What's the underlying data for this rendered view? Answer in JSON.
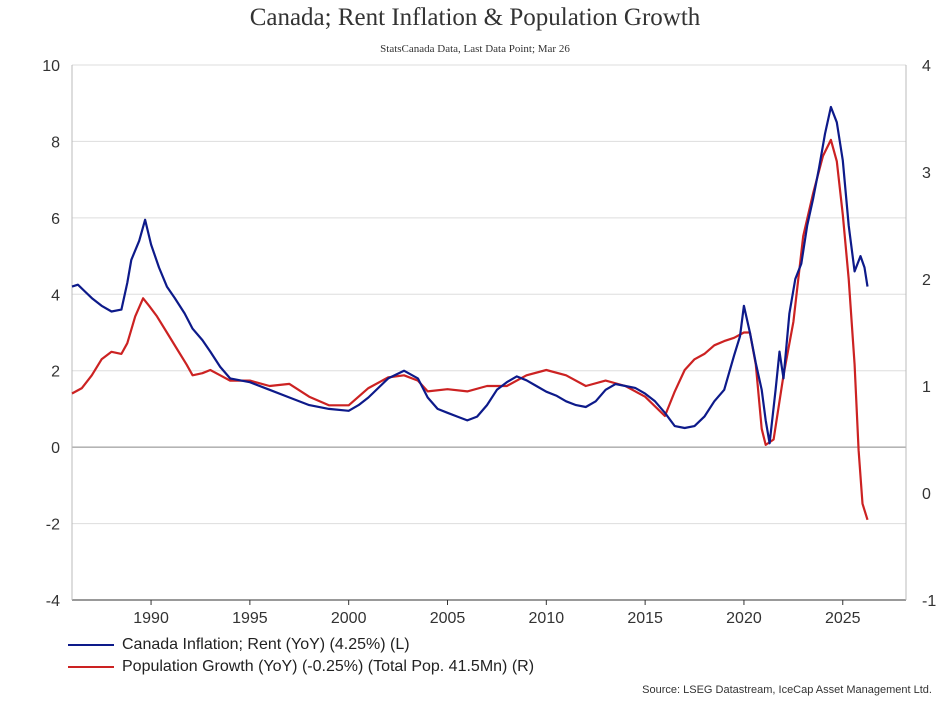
{
  "chart_data": {
    "type": "line",
    "title": "Canada; Rent Inflation & Population Growth",
    "subtitle": "StatsCanada Data, Last Data Point; Mar 26",
    "source": "Source: LSEG Datastream, IceCap Asset Management Ltd.",
    "xlim": [
      1986.0,
      2028.2
    ],
    "x_ticks": [
      1990,
      1995,
      2000,
      2005,
      2010,
      2015,
      2020,
      2025
    ],
    "y_left": {
      "range": [
        -4,
        10
      ],
      "ticks": [
        -4,
        -2,
        0,
        2,
        4,
        6,
        8,
        10
      ]
    },
    "y_right": {
      "range": [
        -1,
        4
      ],
      "ticks": [
        -1,
        0,
        1,
        2,
        3,
        4
      ]
    },
    "grid": "horizontal",
    "legend_position": "bottom-left",
    "colors": {
      "rent": "#0d1a8a",
      "population": "#cc2222",
      "grid": "#dddddd",
      "zero_line": "#888888"
    },
    "series": [
      {
        "name": "Canada Inflation; Rent (YoY) (4.25%) (L)",
        "axis": "left",
        "points": [
          [
            1986.0,
            4.2
          ],
          [
            1986.3,
            4.25
          ],
          [
            1986.6,
            4.1
          ],
          [
            1987.0,
            3.9
          ],
          [
            1987.5,
            3.7
          ],
          [
            1988.0,
            3.55
          ],
          [
            1988.5,
            3.6
          ],
          [
            1988.8,
            4.3
          ],
          [
            1989.0,
            4.9
          ],
          [
            1989.4,
            5.4
          ],
          [
            1989.7,
            5.95
          ],
          [
            1990.0,
            5.3
          ],
          [
            1990.4,
            4.7
          ],
          [
            1990.8,
            4.2
          ],
          [
            1991.2,
            3.9
          ],
          [
            1991.7,
            3.5
          ],
          [
            1992.1,
            3.1
          ],
          [
            1992.6,
            2.8
          ],
          [
            1993.0,
            2.5
          ],
          [
            1993.5,
            2.1
          ],
          [
            1994.0,
            1.8
          ],
          [
            1995.0,
            1.7
          ],
          [
            1996.0,
            1.5
          ],
          [
            1997.0,
            1.3
          ],
          [
            1998.0,
            1.1
          ],
          [
            1999.0,
            1.0
          ],
          [
            2000.0,
            0.95
          ],
          [
            2000.5,
            1.1
          ],
          [
            2001.0,
            1.3
          ],
          [
            2002.0,
            1.8
          ],
          [
            2002.8,
            2.0
          ],
          [
            2003.5,
            1.8
          ],
          [
            2004.0,
            1.3
          ],
          [
            2004.5,
            1.0
          ],
          [
            2005.0,
            0.9
          ],
          [
            2005.5,
            0.8
          ],
          [
            2006.0,
            0.7
          ],
          [
            2006.5,
            0.8
          ],
          [
            2007.0,
            1.1
          ],
          [
            2007.5,
            1.5
          ],
          [
            2008.0,
            1.7
          ],
          [
            2008.5,
            1.85
          ],
          [
            2009.0,
            1.75
          ],
          [
            2009.5,
            1.6
          ],
          [
            2010.0,
            1.45
          ],
          [
            2010.5,
            1.35
          ],
          [
            2011.0,
            1.2
          ],
          [
            2011.5,
            1.1
          ],
          [
            2012.0,
            1.05
          ],
          [
            2012.5,
            1.2
          ],
          [
            2013.0,
            1.5
          ],
          [
            2013.5,
            1.65
          ],
          [
            2014.0,
            1.6
          ],
          [
            2014.5,
            1.55
          ],
          [
            2015.0,
            1.4
          ],
          [
            2015.5,
            1.2
          ],
          [
            2016.0,
            0.9
          ],
          [
            2016.5,
            0.55
          ],
          [
            2017.0,
            0.5
          ],
          [
            2017.5,
            0.55
          ],
          [
            2018.0,
            0.8
          ],
          [
            2018.5,
            1.2
          ],
          [
            2019.0,
            1.5
          ],
          [
            2019.5,
            2.4
          ],
          [
            2019.8,
            2.9
          ],
          [
            2020.0,
            3.7
          ],
          [
            2020.3,
            3.0
          ],
          [
            2020.6,
            2.2
          ],
          [
            2020.9,
            1.5
          ],
          [
            2021.1,
            0.7
          ],
          [
            2021.3,
            0.1
          ],
          [
            2021.6,
            1.5
          ],
          [
            2021.8,
            2.5
          ],
          [
            2022.0,
            1.8
          ],
          [
            2022.3,
            3.5
          ],
          [
            2022.6,
            4.4
          ],
          [
            2022.9,
            4.8
          ],
          [
            2023.2,
            5.8
          ],
          [
            2023.5,
            6.5
          ],
          [
            2023.8,
            7.3
          ],
          [
            2024.1,
            8.2
          ],
          [
            2024.4,
            8.9
          ],
          [
            2024.7,
            8.5
          ],
          [
            2025.0,
            7.5
          ],
          [
            2025.3,
            5.8
          ],
          [
            2025.6,
            4.6
          ],
          [
            2025.9,
            5.0
          ],
          [
            2026.1,
            4.7
          ],
          [
            2026.25,
            4.2
          ]
        ]
      },
      {
        "name": "Population Growth (YoY) (-0.25%) (Total Pop. 41.5Mn) (R)",
        "axis": "right",
        "points": [
          [
            1986.0,
            0.93
          ],
          [
            1986.5,
            0.98
          ],
          [
            1987.0,
            1.1
          ],
          [
            1987.5,
            1.25
          ],
          [
            1988.0,
            1.32
          ],
          [
            1988.5,
            1.3
          ],
          [
            1988.8,
            1.4
          ],
          [
            1989.2,
            1.65
          ],
          [
            1989.6,
            1.82
          ],
          [
            1989.9,
            1.75
          ],
          [
            1990.3,
            1.65
          ],
          [
            1990.8,
            1.5
          ],
          [
            1991.3,
            1.35
          ],
          [
            1991.8,
            1.2
          ],
          [
            1992.1,
            1.1
          ],
          [
            1992.6,
            1.12
          ],
          [
            1993.0,
            1.15
          ],
          [
            1993.5,
            1.1
          ],
          [
            1994.0,
            1.05
          ],
          [
            1995.0,
            1.05
          ],
          [
            1996.0,
            1.0
          ],
          [
            1997.0,
            1.02
          ],
          [
            1998.0,
            0.9
          ],
          [
            1999.0,
            0.82
          ],
          [
            2000.0,
            0.82
          ],
          [
            2001.0,
            0.98
          ],
          [
            2002.0,
            1.08
          ],
          [
            2002.8,
            1.1
          ],
          [
            2003.5,
            1.05
          ],
          [
            2004.0,
            0.95
          ],
          [
            2005.0,
            0.97
          ],
          [
            2006.0,
            0.95
          ],
          [
            2007.0,
            1.0
          ],
          [
            2008.0,
            1.0
          ],
          [
            2009.0,
            1.1
          ],
          [
            2010.0,
            1.15
          ],
          [
            2011.0,
            1.1
          ],
          [
            2012.0,
            1.0
          ],
          [
            2013.0,
            1.05
          ],
          [
            2014.0,
            1.0
          ],
          [
            2015.0,
            0.9
          ],
          [
            2016.0,
            0.72
          ],
          [
            2016.5,
            0.95
          ],
          [
            2017.0,
            1.15
          ],
          [
            2017.5,
            1.25
          ],
          [
            2018.0,
            1.3
          ],
          [
            2018.5,
            1.38
          ],
          [
            2019.0,
            1.42
          ],
          [
            2019.5,
            1.45
          ],
          [
            2020.0,
            1.5
          ],
          [
            2020.3,
            1.5
          ],
          [
            2020.6,
            1.2
          ],
          [
            2020.9,
            0.6
          ],
          [
            2021.1,
            0.45
          ],
          [
            2021.5,
            0.5
          ],
          [
            2022.0,
            1.1
          ],
          [
            2022.5,
            1.6
          ],
          [
            2023.0,
            2.4
          ],
          [
            2023.5,
            2.8
          ],
          [
            2024.0,
            3.15
          ],
          [
            2024.4,
            3.3
          ],
          [
            2024.7,
            3.1
          ],
          [
            2025.0,
            2.6
          ],
          [
            2025.3,
            2.0
          ],
          [
            2025.6,
            1.2
          ],
          [
            2025.8,
            0.4
          ],
          [
            2026.0,
            -0.1
          ],
          [
            2026.25,
            -0.25
          ]
        ]
      }
    ]
  }
}
